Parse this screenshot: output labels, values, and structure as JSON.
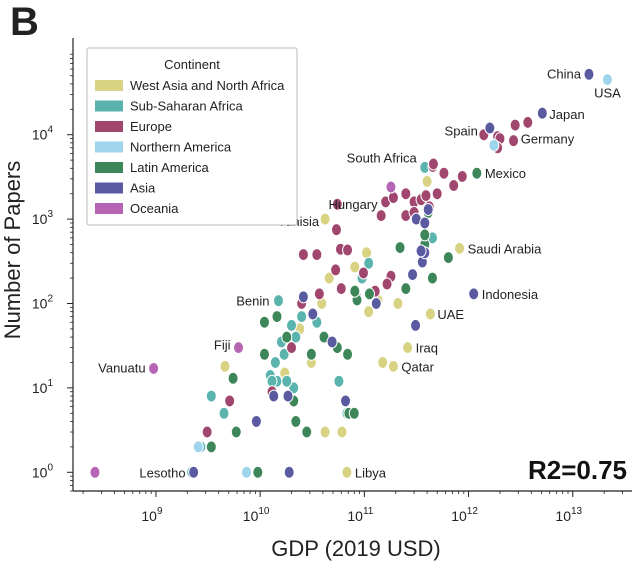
{
  "panel_label": "B",
  "chart_data": {
    "type": "scatter",
    "xlabel": "GDP (2019 USD)",
    "ylabel": "Number of Papers",
    "xscale": "log",
    "yscale": "log",
    "xlim": [
      160000000.0,
      37000000000000.0
    ],
    "ylim": [
      0.6,
      140000.0
    ],
    "x_ticks": [
      {
        "label": "10",
        "exp": "9",
        "value": 1000000000.0
      },
      {
        "label": "10",
        "exp": "10",
        "value": 10000000000.0
      },
      {
        "label": "10",
        "exp": "11",
        "value": 100000000000.0
      },
      {
        "label": "10",
        "exp": "12",
        "value": 1000000000000.0
      },
      {
        "label": "10",
        "exp": "13",
        "value": 10000000000000.0
      }
    ],
    "y_ticks": [
      {
        "label": "10",
        "exp": "0",
        "value": 1
      },
      {
        "label": "10",
        "exp": "1",
        "value": 10
      },
      {
        "label": "10",
        "exp": "2",
        "value": 100
      },
      {
        "label": "10",
        "exp": "3",
        "value": 1000
      },
      {
        "label": "10",
        "exp": "4",
        "value": 10000
      }
    ],
    "legend_title": "Continent",
    "legend_position": "top-left",
    "grid": false,
    "annotation_r2": "R2=0.75",
    "series": [
      {
        "name": "West Asia and North Africa",
        "color": "#d8d382",
        "points": [
          [
            42000000000.0,
            1000
          ],
          [
            400000000000.0,
            2800
          ],
          [
            820000000000.0,
            450
          ],
          [
            430000000000.0,
            75
          ],
          [
            260000000000.0,
            30
          ],
          [
            190000000000.0,
            18
          ],
          [
            210000000000.0,
            100
          ],
          [
            68000000000.0,
            1
          ],
          [
            61000000000.0,
            3
          ],
          [
            42000000000.0,
            3
          ],
          [
            46000000000.0,
            200
          ],
          [
            105000000000.0,
            400
          ],
          [
            110000000000.0,
            80
          ],
          [
            135000000000.0,
            110
          ],
          [
            39000000000.0,
            100
          ],
          [
            17200000000.0,
            15
          ],
          [
            24000000000.0,
            50
          ],
          [
            81000000000.0,
            270
          ],
          [
            31000000000.0,
            20
          ],
          [
            150000000000.0,
            20
          ],
          [
            4600000000.0,
            18
          ]
        ]
      },
      {
        "name": "Sub-Saharan Africa",
        "color": "#5ab3ad",
        "points": [
          [
            15000000000.0,
            108
          ],
          [
            380000000000.0,
            4100
          ],
          [
            450000000000.0,
            600
          ],
          [
            4500000000.0,
            5
          ],
          [
            2200000000.0,
            1
          ],
          [
            2700000000.0,
            2
          ],
          [
            12500000000.0,
            14
          ],
          [
            14500000000.0,
            12
          ],
          [
            16000000000.0,
            35
          ],
          [
            21000000000.0,
            10
          ],
          [
            22000000000.0,
            40
          ],
          [
            35000000000.0,
            60
          ],
          [
            68000000000.0,
            5
          ],
          [
            75000000000.0,
            5
          ],
          [
            57000000000.0,
            12
          ],
          [
            110000000000.0,
            300
          ],
          [
            95000000000.0,
            200
          ],
          [
            20000000000.0,
            55
          ],
          [
            25000000000.0,
            70
          ],
          [
            13000000000.0,
            12
          ],
          [
            17000000000.0,
            25
          ],
          [
            18000000000.0,
            12
          ],
          [
            14000000000.0,
            20
          ],
          [
            3400000000.0,
            8
          ]
        ]
      },
      {
        "name": "Europe",
        "color": "#a1476f",
        "points": [
          [
            2800000000000.0,
            13000
          ],
          [
            1900000000000.0,
            9500
          ],
          [
            1400000000000.0,
            10000
          ],
          [
            2700000000000.0,
            8500
          ],
          [
            2000000000000.0,
            9000
          ],
          [
            3700000000000.0,
            14000
          ],
          [
            1900000000000.0,
            7000
          ],
          [
            455000000000.0,
            4200
          ],
          [
            460000000000.0,
            4500
          ],
          [
            580000000000.0,
            3500
          ],
          [
            720000000000.0,
            2500
          ],
          [
            870000000000.0,
            3200
          ],
          [
            160000000000.0,
            1600
          ],
          [
            190000000000.0,
            1800
          ],
          [
            250000000000.0,
            2000
          ],
          [
            300000000000.0,
            1600
          ],
          [
            350000000000.0,
            1700
          ],
          [
            250000000000.0,
            1100
          ],
          [
            300000000000.0,
            1200
          ],
          [
            420000000000.0,
            1400
          ],
          [
            500000000000.0,
            2000
          ],
          [
            390000000000.0,
            1900
          ],
          [
            145000000000.0,
            1100
          ],
          [
            54000000000.0,
            750
          ],
          [
            55000000000.0,
            1500
          ],
          [
            26000000000.0,
            380
          ],
          [
            35000000000.0,
            380
          ],
          [
            59000000000.0,
            440
          ],
          [
            69000000000.0,
            430
          ],
          [
            98000000000.0,
            230
          ],
          [
            180000000000.0,
            210
          ],
          [
            127000000000.0,
            140
          ],
          [
            165000000000.0,
            170
          ],
          [
            84000000000.0,
            120
          ],
          [
            60000000000.0,
            150
          ],
          [
            37000000000.0,
            130
          ],
          [
            25000000000.0,
            100
          ],
          [
            20000000000.0,
            30
          ],
          [
            13000000000.0,
            9
          ],
          [
            5100000000.0,
            7
          ],
          [
            3100000000.0,
            3
          ],
          [
            53000000000.0,
            250
          ]
        ]
      },
      {
        "name": "Northern America",
        "color": "#9fd5ec",
        "points": [
          [
            21500000000000.0,
            45000
          ],
          [
            1750000000000.0,
            7500
          ],
          [
            7400000000.0,
            1
          ],
          [
            2550000000.0,
            2
          ]
        ]
      },
      {
        "name": "Latin America",
        "color": "#3c8659",
        "points": [
          [
            1200000000000.0,
            3500
          ],
          [
            450000000000.0,
            200
          ],
          [
            380000000000.0,
            500
          ],
          [
            410000000000.0,
            1200
          ],
          [
            640000000000.0,
            350
          ],
          [
            250000000000.0,
            150
          ],
          [
            220000000000.0,
            460
          ],
          [
            380000000000.0,
            650
          ],
          [
            112000000000.0,
            130
          ],
          [
            85000000000.0,
            110
          ],
          [
            81000000000.0,
            140
          ],
          [
            69000000000.0,
            25
          ],
          [
            71000000000.0,
            5
          ],
          [
            80000000000.0,
            5
          ],
          [
            55000000000.0,
            30
          ],
          [
            41000000000.0,
            40
          ],
          [
            31000000000.0,
            25
          ],
          [
            28000000000.0,
            3
          ],
          [
            21000000000.0,
            7
          ],
          [
            18000000000.0,
            40
          ],
          [
            14500000000.0,
            70
          ],
          [
            11000000000.0,
            25
          ],
          [
            9500000000.0,
            1
          ],
          [
            5500000000.0,
            13
          ],
          [
            5900000000.0,
            3
          ],
          [
            3400000000.0,
            2
          ],
          [
            22000000000.0,
            4
          ],
          [
            11000000000.0,
            60
          ]
        ]
      },
      {
        "name": "Asia",
        "color": "#5a5aa1",
        "points": [
          [
            14300000000000.0,
            52000
          ],
          [
            5100000000000.0,
            18000
          ],
          [
            1600000000000.0,
            12000
          ],
          [
            1120000000000.0,
            130
          ],
          [
            315000000000.0,
            1000
          ],
          [
            380000000000.0,
            900
          ],
          [
            360000000000.0,
            310
          ],
          [
            380000000000.0,
            400
          ],
          [
            310000000000.0,
            55
          ],
          [
            350000000000.0,
            420
          ],
          [
            290000000000.0,
            220
          ],
          [
            410000000000.0,
            1300
          ],
          [
            130000000000.0,
            100
          ],
          [
            66000000000.0,
            7
          ],
          [
            49000000000.0,
            35
          ],
          [
            32000000000.0,
            75
          ],
          [
            18500000000.0,
            8
          ],
          [
            13500000000.0,
            8
          ],
          [
            9200000000.0,
            4
          ],
          [
            19000000000.0,
            1
          ],
          [
            2300000000.0,
            1
          ],
          [
            26000000000.0,
            120
          ]
        ]
      },
      {
        "name": "Oceania",
        "color": "#b565b3",
        "points": [
          [
            950000000.0,
            17
          ],
          [
            260000000.0,
            1
          ],
          [
            180000000000.0,
            2400
          ],
          [
            6200000000.0,
            30
          ]
        ]
      }
    ],
    "annotations": [
      {
        "text": "China",
        "x": 14300000000000.0,
        "y": 52000,
        "anchor": "end"
      },
      {
        "text": "USA",
        "x": 21500000000000.0,
        "y": 45000,
        "anchor": "middle"
      },
      {
        "text": "Japan",
        "x": 5100000000000.0,
        "y": 18000,
        "anchor": "start"
      },
      {
        "text": "Spain",
        "x": 1400000000000.0,
        "y": 10000,
        "anchor": "end"
      },
      {
        "text": "Germany",
        "x": 3700000000000.0,
        "y": 14000,
        "anchor": "start"
      },
      {
        "text": "South Africa",
        "x": 380000000000.0,
        "y": 4100,
        "anchor": "end"
      },
      {
        "text": "Mexico",
        "x": 1200000000000.0,
        "y": 3500,
        "anchor": "start"
      },
      {
        "text": "Hungary",
        "x": 160000000000.0,
        "y": 1600,
        "anchor": "end"
      },
      {
        "text": "Tunisia",
        "x": 42000000000.0,
        "y": 1000,
        "anchor": "end"
      },
      {
        "text": "Saudi Arabia",
        "x": 820000000000.0,
        "y": 450,
        "anchor": "start"
      },
      {
        "text": "Benin",
        "x": 15000000000.0,
        "y": 108,
        "anchor": "end"
      },
      {
        "text": "Indonesia",
        "x": 1120000000000.0,
        "y": 130,
        "anchor": "start"
      },
      {
        "text": "UAE",
        "x": 430000000000.0,
        "y": 75,
        "anchor": "start"
      },
      {
        "text": "Iraq",
        "x": 260000000000.0,
        "y": 30,
        "anchor": "start"
      },
      {
        "text": "Fiji",
        "x": 6200000000.0,
        "y": 30,
        "anchor": "end"
      },
      {
        "text": "Qatar",
        "x": 190000000000.0,
        "y": 18,
        "anchor": "start"
      },
      {
        "text": "Vanuatu",
        "x": 950000000.0,
        "y": 17,
        "anchor": "end"
      },
      {
        "text": "Lesotho",
        "x": 2300000000.0,
        "y": 1,
        "anchor": "end"
      },
      {
        "text": "Libya",
        "x": 68000000000.0,
        "y": 1,
        "anchor": "start"
      }
    ]
  }
}
